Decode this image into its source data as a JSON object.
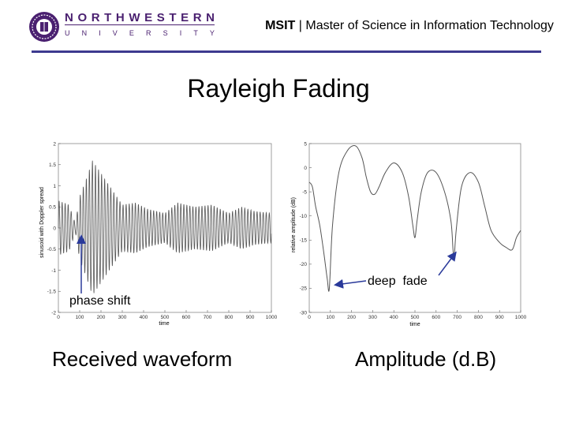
{
  "header": {
    "brand_top_letters": [
      "N",
      "O",
      "R",
      "T",
      "H",
      "W",
      "E",
      "S",
      "T",
      "E",
      "R",
      "N"
    ],
    "brand_bottom_letters": [
      "U",
      "N",
      "I",
      "V",
      "E",
      "R",
      "S",
      "I",
      "T",
      "Y"
    ],
    "title_bold": "MSIT",
    "title_sep": " | ",
    "title_rest": "Master of Science in Information Technology",
    "brand_color": "#4a2070",
    "rule_color": "#3d3a8f"
  },
  "slide_title": "Rayleigh Fading",
  "captions": {
    "left": "Received waveform",
    "right": "Amplitude (d.B)"
  },
  "annotations": {
    "phase_shift": "phase shift",
    "deep_fade": "deep  fade",
    "arrow_color": "#2a3a9a"
  },
  "chart_data": [
    {
      "type": "line",
      "xlabel": "time",
      "ylabel": "sinusoid with Doppler spread",
      "xlim": [
        0,
        1000
      ],
      "ylim": [
        -2,
        2
      ],
      "xticks": [
        0,
        100,
        200,
        300,
        400,
        500,
        600,
        700,
        800,
        900,
        1000
      ],
      "yticks": [
        2,
        1.5,
        1,
        0.5,
        0,
        -0.5,
        -1,
        -1.5,
        -2
      ],
      "ytick_labels": [
        "2",
        "1.5",
        "1",
        "0.5",
        "0",
        "-0.5",
        "-1",
        "-1.5",
        "-2"
      ],
      "envelope": {
        "x": [
          0,
          50,
          80,
          100,
          130,
          160,
          200,
          240,
          300,
          360,
          420,
          500,
          560,
          640,
          720,
          800,
          860,
          920,
          1000
        ],
        "amplitude": [
          0.65,
          0.55,
          0.1,
          0.75,
          1.15,
          1.6,
          1.3,
          1.0,
          0.55,
          0.6,
          0.45,
          0.35,
          0.6,
          0.5,
          0.55,
          0.35,
          0.5,
          0.4,
          0.35
        ]
      },
      "cycles": 70
    },
    {
      "type": "line",
      "xlabel": "time",
      "ylabel": "relative amplitude (dB)",
      "xlim": [
        0,
        1000
      ],
      "ylim": [
        -30,
        5
      ],
      "xticks": [
        0,
        100,
        200,
        300,
        400,
        500,
        600,
        700,
        800,
        900,
        1000
      ],
      "yticks": [
        5,
        0,
        -5,
        -10,
        -15,
        -20,
        -25,
        -30
      ],
      "x": [
        0,
        15,
        30,
        50,
        70,
        85,
        95,
        110,
        140,
        180,
        220,
        250,
        270,
        290,
        310,
        330,
        360,
        400,
        440,
        470,
        490,
        500,
        510,
        530,
        560,
        600,
        640,
        670,
        680,
        685,
        695,
        720,
        760,
        800,
        830,
        860,
        900,
        930,
        960,
        980,
        1000
      ],
      "y": [
        -3,
        -4,
        -8,
        -12,
        -18,
        -23,
        -25,
        -12,
        -1,
        3.5,
        4.5,
        2,
        -2,
        -5,
        -5.5,
        -4,
        -1,
        1,
        -1,
        -6,
        -12,
        -14.5,
        -11,
        -5,
        -1,
        -1,
        -5,
        -11,
        -17,
        -19,
        -13,
        -4,
        -1,
        -3,
        -8,
        -13,
        -15.5,
        -16.5,
        -17,
        -14.5,
        -13
      ]
    }
  ]
}
